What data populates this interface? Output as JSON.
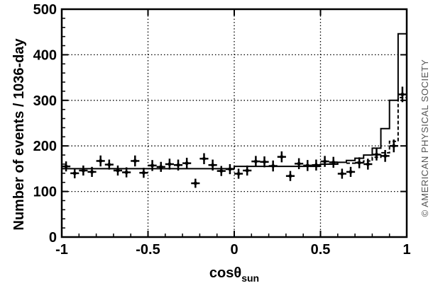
{
  "chart_data": {
    "type": "scatter",
    "title": "",
    "xlabel": "cosθ",
    "xlabel_sub": "sun",
    "ylabel": "Number of events / 1036-day",
    "xlim": [
      -1,
      1
    ],
    "ylim": [
      0,
      500
    ],
    "x_ticks": [
      -1,
      -0.5,
      0,
      0.5,
      1
    ],
    "x_tick_labels": [
      "-1",
      "-0.5",
      "0",
      "0.5",
      "1"
    ],
    "y_ticks": [
      0,
      100,
      200,
      300,
      400,
      500
    ],
    "y_tick_labels": [
      "0",
      "100",
      "200",
      "300",
      "400",
      "500"
    ],
    "grid": true,
    "series": [
      {
        "style": "points-with-error-bars",
        "color": "#000000",
        "bin_halfwidth": 0.025,
        "x": [
          -0.975,
          -0.925,
          -0.875,
          -0.825,
          -0.775,
          -0.725,
          -0.675,
          -0.625,
          -0.575,
          -0.525,
          -0.475,
          -0.425,
          -0.375,
          -0.325,
          -0.275,
          -0.225,
          -0.175,
          -0.125,
          -0.075,
          -0.025,
          0.025,
          0.075,
          0.125,
          0.175,
          0.225,
          0.275,
          0.325,
          0.375,
          0.425,
          0.475,
          0.525,
          0.575,
          0.625,
          0.675,
          0.725,
          0.775,
          0.825,
          0.875,
          0.925,
          0.975
        ],
        "y": [
          155,
          140,
          146,
          143,
          167,
          159,
          146,
          142,
          167,
          141,
          157,
          154,
          160,
          158,
          162,
          118,
          172,
          158,
          145,
          149,
          139,
          146,
          166,
          165,
          156,
          176,
          134,
          161,
          157,
          158,
          166,
          164,
          139,
          143,
          163,
          160,
          181,
          178,
          200,
          313
        ],
        "err": [
          11,
          11,
          11,
          11,
          12,
          11,
          11,
          11,
          12,
          11,
          12,
          11,
          12,
          12,
          12,
          10,
          12,
          12,
          11,
          11,
          11,
          11,
          12,
          12,
          12,
          12,
          11,
          12,
          12,
          12,
          12,
          12,
          11,
          11,
          12,
          12,
          13,
          13,
          14,
          17
        ]
      },
      {
        "style": "solid-step",
        "color": "#000000",
        "edges": [
          -1,
          0,
          0.5,
          0.6,
          0.65,
          0.7,
          0.75,
          0.8,
          0.85,
          0.9,
          0.95,
          1
        ],
        "values": [
          150,
          155,
          160,
          164,
          168,
          173,
          180,
          195,
          238,
          300,
          446
        ]
      },
      {
        "style": "dashed-step",
        "color": "#000000",
        "edges": [
          0.65,
          0.7,
          0.75,
          0.8,
          0.85,
          0.9,
          0.95,
          1
        ],
        "values": [
          162,
          164,
          167,
          175,
          185,
          210,
          306
        ]
      }
    ]
  },
  "copyright": "© AMERICAN PHYSICAL SOCIETY"
}
